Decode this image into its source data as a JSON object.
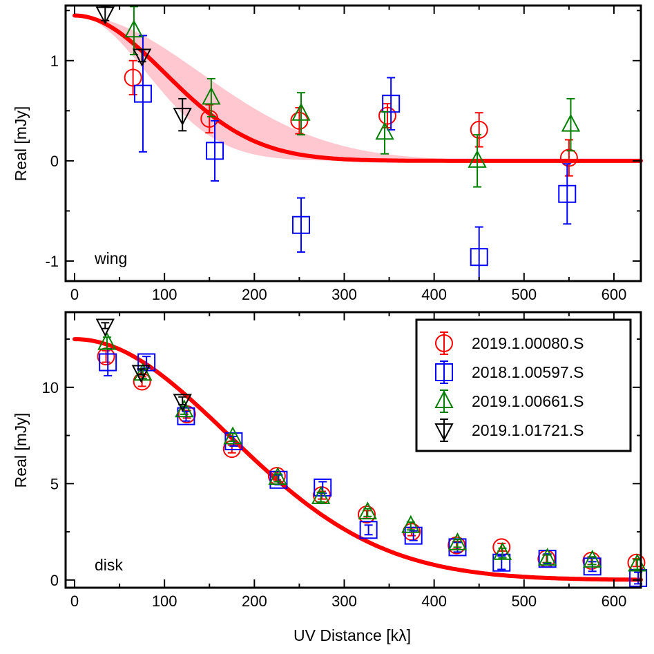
{
  "chart_data": [
    {
      "type": "scatter",
      "panel_label": "wing",
      "xlabel": "",
      "ylabel": "Real [mJy]",
      "xlim": [
        -10,
        630
      ],
      "ylim": [
        -1.2,
        1.55
      ],
      "xticks": [
        0,
        100,
        200,
        300,
        400,
        500,
        600
      ],
      "xtick_labels": [
        "0",
        "100",
        "200",
        "300",
        "400",
        "500",
        "600"
      ],
      "yticks": [
        -1,
        0,
        1
      ],
      "ytick_labels": [
        "-1",
        "0",
        "1"
      ],
      "model": {
        "name": "model",
        "color": "#ff0000",
        "amp": 1.45,
        "sigma": 100,
        "band_upper_sigma": 140,
        "band_lower_sigma": 80
      },
      "series": [
        {
          "name": "2019.1.00080.S",
          "marker": "circle",
          "color": "#ff0000",
          "points": [
            [
              65,
              0.83,
              0.17
            ],
            [
              150,
              0.42,
              0.14
            ],
            [
              250,
              0.4,
              0.13
            ],
            [
              348,
              0.45,
              0.12
            ],
            [
              450,
              0.31,
              0.17
            ],
            [
              550,
              0.03,
              0.18
            ]
          ]
        },
        {
          "name": "2018.1.00597.S",
          "marker": "square",
          "color": "#0000ff",
          "points": [
            [
              76,
              0.67,
              0.58
            ],
            [
              156,
              0.1,
              0.3
            ],
            [
              252,
              -0.64,
              0.27
            ],
            [
              352,
              0.57,
              0.26
            ],
            [
              450,
              -0.96,
              0.3
            ],
            [
              548,
              -0.33,
              0.3
            ]
          ]
        },
        {
          "name": "2019.1.00661.S",
          "marker": "triangle-up",
          "color": "#008000",
          "points": [
            [
              66,
              1.3,
              0.24
            ],
            [
              152,
              0.63,
              0.19
            ],
            [
              252,
              0.47,
              0.21
            ],
            [
              345,
              0.28,
              0.21
            ],
            [
              448,
              0.0,
              0.26
            ],
            [
              552,
              0.36,
              0.26
            ]
          ]
        },
        {
          "name": "2019.1.01721.S",
          "marker": "triangle-down",
          "color": "#000000",
          "points": [
            [
              34,
              1.47,
              0.07
            ],
            [
              75,
              1.05,
              0.06
            ],
            [
              120,
              0.46,
              0.16
            ]
          ]
        }
      ]
    },
    {
      "type": "scatter",
      "panel_label": "disk",
      "xlabel": "UV Distance [kλ]",
      "ylabel": "Real [mJy]",
      "xlim": [
        -10,
        630
      ],
      "ylim": [
        -0.4,
        13.9
      ],
      "xticks": [
        0,
        100,
        200,
        300,
        400,
        500,
        600
      ],
      "xtick_labels": [
        "0",
        "100",
        "200",
        "300",
        "400",
        "500",
        "600"
      ],
      "yticks": [
        0,
        5,
        10
      ],
      "ytick_labels": [
        "0",
        "5",
        "10"
      ],
      "model": {
        "name": "model",
        "color": "#ff0000",
        "amp": 12.5,
        "sigma": 170
      },
      "series": [
        {
          "name": "2019.1.00080.S",
          "marker": "circle",
          "color": "#ff0000",
          "points": [
            [
              35,
              11.6,
              0.3
            ],
            [
              75,
              10.3,
              0.25
            ],
            [
              125,
              8.6,
              0.2
            ],
            [
              175,
              6.8,
              0.2
            ],
            [
              225,
              5.4,
              0.2
            ],
            [
              275,
              4.4,
              0.2
            ],
            [
              325,
              3.4,
              0.2
            ],
            [
              375,
              2.5,
              0.2
            ],
            [
              425,
              1.8,
              0.2
            ],
            [
              475,
              1.7,
              0.2
            ],
            [
              525,
              1.1,
              0.2
            ],
            [
              575,
              1.0,
              0.2
            ],
            [
              625,
              0.9,
              0.2
            ]
          ]
        },
        {
          "name": "2018.1.00597.S",
          "marker": "square",
          "color": "#0000ff",
          "points": [
            [
              37,
              11.3,
              0.7
            ],
            [
              80,
              11.3,
              0.3
            ],
            [
              124,
              8.5,
              0.25
            ],
            [
              177,
              7.2,
              0.25
            ],
            [
              227,
              5.2,
              0.25
            ],
            [
              276,
              4.8,
              0.3
            ],
            [
              327,
              2.6,
              0.25
            ],
            [
              377,
              2.3,
              0.25
            ],
            [
              426,
              1.7,
              0.25
            ],
            [
              475,
              0.9,
              0.35
            ],
            [
              526,
              1.1,
              0.25
            ],
            [
              576,
              0.7,
              0.25
            ],
            [
              627,
              0.1,
              0.3
            ]
          ]
        },
        {
          "name": "2019.1.00661.S",
          "marker": "triangle-up",
          "color": "#008000",
          "points": [
            [
              36,
              12.3,
              0.3
            ],
            [
              76,
              10.7,
              0.25
            ],
            [
              122,
              8.8,
              0.2
            ],
            [
              176,
              7.4,
              0.2
            ],
            [
              226,
              5.3,
              0.2
            ],
            [
              274,
              4.3,
              0.25
            ],
            [
              326,
              3.5,
              0.2
            ],
            [
              374,
              2.8,
              0.2
            ],
            [
              426,
              1.9,
              0.2
            ],
            [
              476,
              1.4,
              0.25
            ],
            [
              526,
              1.1,
              0.2
            ],
            [
              576,
              1.0,
              0.2
            ],
            [
              626,
              0.8,
              0.25
            ]
          ]
        },
        {
          "name": "2019.1.01721.S",
          "marker": "triangle-down",
          "color": "#000000",
          "points": [
            [
              34,
              13.2,
              0.15
            ],
            [
              74,
              10.8,
              0.15
            ],
            [
              120,
              9.3,
              0.2
            ]
          ]
        }
      ]
    }
  ],
  "legend": {
    "placement": "top-right of lower panel",
    "entries": [
      {
        "label": "2019.1.00080.S",
        "marker": "circle",
        "color": "#ff0000"
      },
      {
        "label": "2018.1.00597.S",
        "marker": "square",
        "color": "#0000ff"
      },
      {
        "label": "2019.1.00661.S",
        "marker": "triangle-up",
        "color": "#008000"
      },
      {
        "label": "2019.1.01721.S",
        "marker": "triangle-down",
        "color": "#000000"
      }
    ]
  },
  "colors": {
    "model_line": "#ff0000",
    "model_band": "#ffc8d0",
    "frame": "#000000"
  }
}
